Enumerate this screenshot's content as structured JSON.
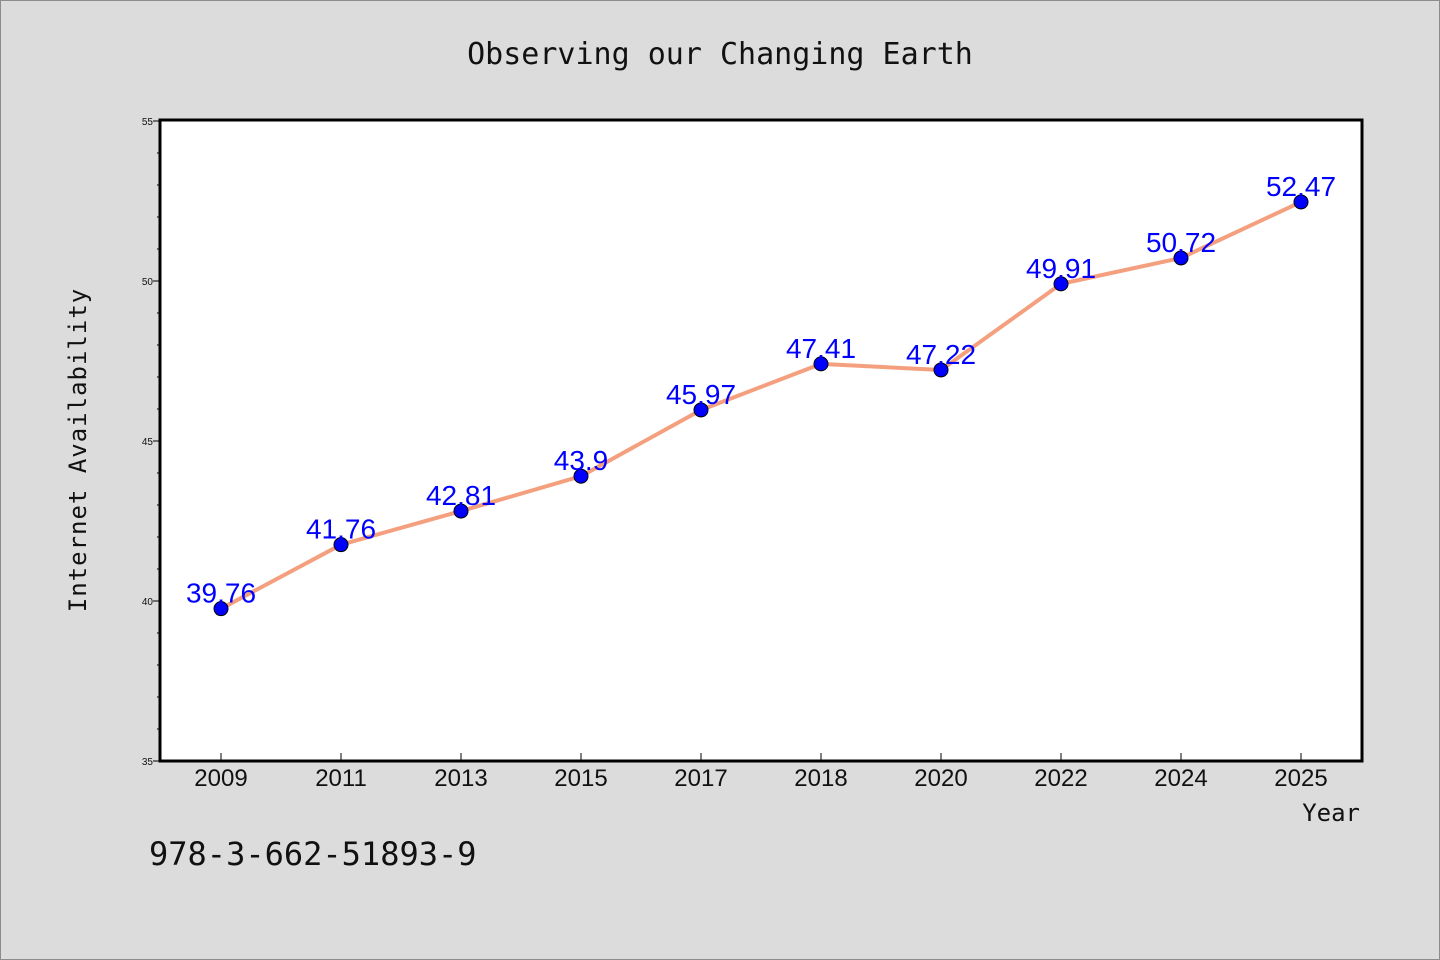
{
  "figure": {
    "background": "#dcdcdc",
    "footer_text": "978-3-662-51893-9"
  },
  "chart_data": {
    "type": "line",
    "title": "Observing our Changing Earth",
    "xlabel": "Year",
    "ylabel": "Internet Availability",
    "categories": [
      "2009",
      "2011",
      "2013",
      "2015",
      "2017",
      "2018",
      "2020",
      "2022",
      "2024",
      "2025"
    ],
    "series": [
      {
        "values": [
          39.76,
          41.76,
          42.81,
          43.9,
          45.97,
          47.41,
          47.22,
          49.91,
          50.72,
          52.47
        ],
        "data_labels": [
          "39.76",
          "41.76",
          "42.81",
          "43.9",
          "45.97",
          "47.41",
          "47.22",
          "49.91",
          "50.72",
          "52.47"
        ],
        "line_color": "#f4a07f",
        "marker_color": "#0000ff",
        "label_color": "#0000ff"
      }
    ],
    "ylim": [
      35,
      55
    ],
    "yticks": [
      "35",
      "40",
      "45",
      "50",
      "55"
    ],
    "grid": false,
    "legend": "none"
  }
}
